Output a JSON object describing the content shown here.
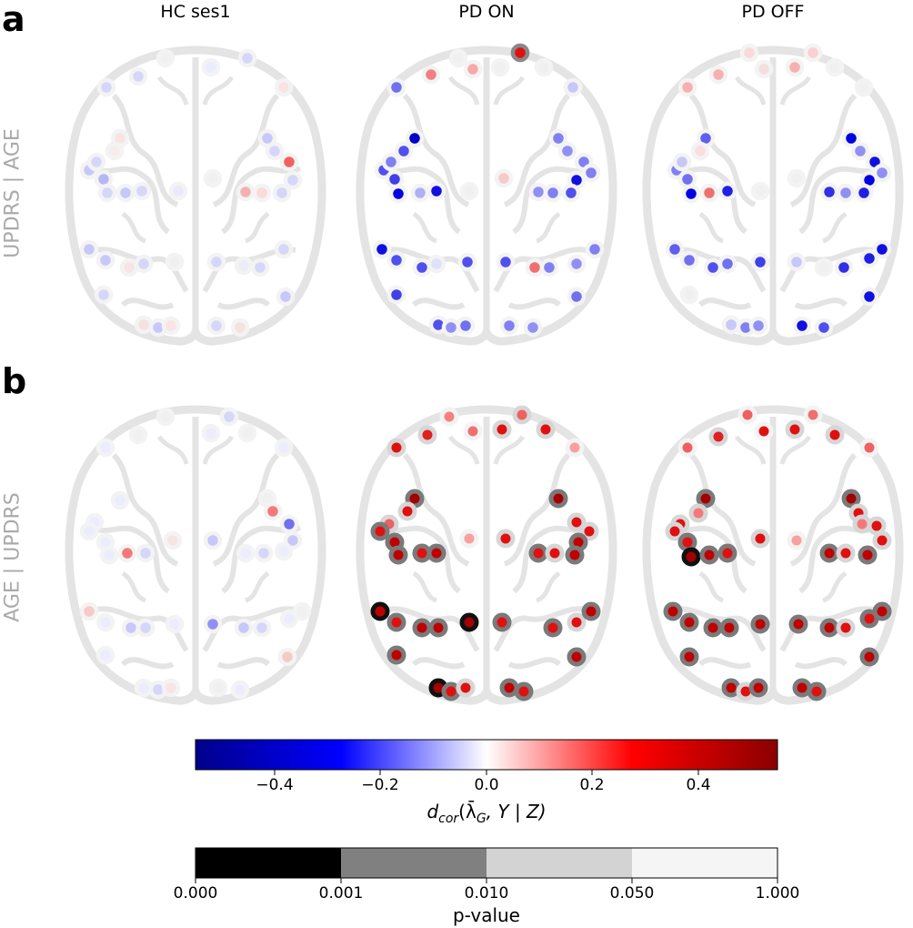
{
  "panels": [
    {
      "letter": "a",
      "row_label": "UPDRS | AGE"
    },
    {
      "letter": "b",
      "row_label": "AGE | UPDRS"
    }
  ],
  "columns": [
    "HC ses1",
    "PD ON",
    "PD OFF"
  ],
  "colors": {
    "brain_outline": "#e4e4e4",
    "negative": "#00008b",
    "mid_negative": "#0000ff",
    "zero": "#ffffff",
    "mid_positive": "#ff0000",
    "positive": "#8b0000",
    "p_0_001": "#000000",
    "p_0_010": "#808080",
    "p_0_050": "#d3d3d3",
    "p_1_000": "#f5f5f5"
  },
  "colorbar_dcor": {
    "range": [
      -0.55,
      0.55
    ],
    "ticks": [
      "−0.4",
      "−0.2",
      "0.0",
      "0.2",
      "0.4"
    ],
    "tick_values": [
      -0.4,
      -0.2,
      0.0,
      0.2,
      0.4
    ],
    "title_main": "d",
    "title_sub": "cor",
    "title_rest": "(λ̄",
    "title_g": "G",
    "title_end": ",  Y | Z)"
  },
  "colorbar_p": {
    "ticks": [
      "0.000",
      "0.001",
      "0.010",
      "0.050",
      "1.000"
    ],
    "title": "p-value"
  }
}
